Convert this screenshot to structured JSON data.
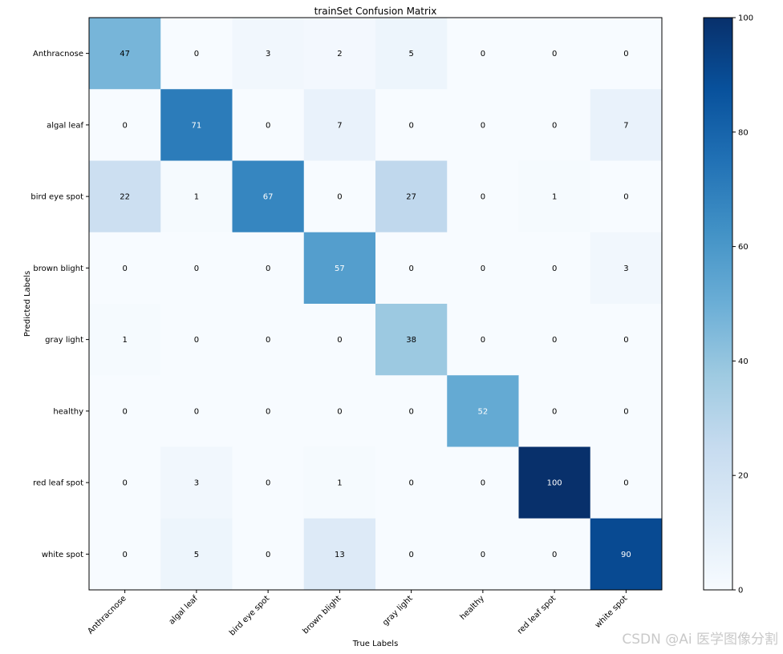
{
  "chart_data": {
    "type": "heatmap",
    "title": "trainSet Confusion Matrix",
    "xlabel": "True Labels",
    "ylabel": "Predicted Labels",
    "x_categories": [
      "Anthracnose",
      "algal leaf",
      "bird eye spot",
      "brown blight",
      "gray light",
      "healthy",
      "red leaf spot",
      "white spot"
    ],
    "y_categories": [
      "Anthracnose",
      "algal leaf",
      "bird eye spot",
      "brown blight",
      "gray light",
      "healthy",
      "red leaf spot",
      "white spot"
    ],
    "values": [
      [
        47,
        0,
        3,
        2,
        5,
        0,
        0,
        0
      ],
      [
        0,
        71,
        0,
        7,
        0,
        0,
        0,
        7
      ],
      [
        22,
        1,
        67,
        0,
        27,
        0,
        1,
        0
      ],
      [
        0,
        0,
        0,
        57,
        0,
        0,
        0,
        3
      ],
      [
        1,
        0,
        0,
        0,
        38,
        0,
        0,
        0
      ],
      [
        0,
        0,
        0,
        0,
        0,
        52,
        0,
        0
      ],
      [
        0,
        3,
        0,
        1,
        0,
        0,
        100,
        0
      ],
      [
        0,
        5,
        0,
        13,
        0,
        0,
        0,
        90
      ]
    ],
    "colormap": "Blues",
    "colorbar": {
      "range": [
        0,
        100
      ],
      "ticks": [
        0,
        20,
        40,
        60,
        80,
        100
      ]
    }
  },
  "watermark": "CSDN @Ai 医学图像分割"
}
